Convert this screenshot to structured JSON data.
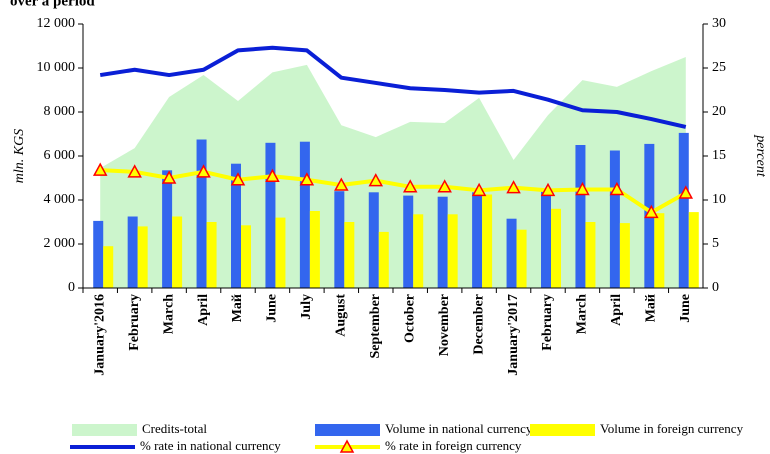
{
  "chart_data": {
    "type": "combo",
    "title": "over a period",
    "ylabel": "mln. KGS",
    "y2label": "percent",
    "categories": [
      "January'2016",
      "February",
      "March",
      "April",
      "Май",
      "June",
      "July",
      "August",
      "September",
      "October",
      "November",
      "December",
      "January'2017",
      "February",
      "March",
      "April",
      "Май",
      "June"
    ],
    "ylim": [
      0,
      12000
    ],
    "yticks": [
      {
        "value": 0,
        "label": "0"
      },
      {
        "value": 2000,
        "label": "2 000"
      },
      {
        "value": 4000,
        "label": "4 000"
      },
      {
        "value": 6000,
        "label": "6 000"
      },
      {
        "value": 8000,
        "label": "8 000"
      },
      {
        "value": 10000,
        "label": "10 000"
      },
      {
        "value": 12000,
        "label": "12 000"
      }
    ],
    "y2lim": [
      0,
      30
    ],
    "y2ticks": [
      0,
      5,
      10,
      15,
      20,
      25,
      30
    ],
    "series": [
      {
        "name": "Credits-total",
        "type": "area",
        "color": "#ccf5cc",
        "values": [
          5450,
          6360,
          8680,
          9680,
          8500,
          9800,
          10140,
          7400,
          6860,
          7550,
          7500,
          8640,
          5820,
          7860,
          9450,
          9140,
          9860,
          10500
        ]
      },
      {
        "name": "Volume in national currency",
        "type": "bar",
        "color": "#3366ee",
        "values": [
          3050,
          3250,
          5350,
          6750,
          5650,
          6600,
          6650,
          4400,
          4350,
          4200,
          4150,
          4350,
          3150,
          4450,
          6500,
          6250,
          6550,
          7050
        ]
      },
      {
        "name": "Volume in foreign currency",
        "type": "bar",
        "color": "#ffff00",
        "values": [
          1900,
          2800,
          3250,
          3000,
          2850,
          3200,
          3500,
          3000,
          2550,
          3350,
          3350,
          4250,
          2650,
          3600,
          3000,
          2950,
          3400,
          3450
        ]
      },
      {
        "name": "% rate in national currency",
        "type": "line",
        "axis": "y2",
        "color": "#0a1fd6",
        "values": [
          24.2,
          24.8,
          24.2,
          24.8,
          27.0,
          27.3,
          27.0,
          23.9,
          23.3,
          22.7,
          22.5,
          22.2,
          22.4,
          21.4,
          20.2,
          20.0,
          19.2,
          18.3
        ]
      },
      {
        "name": "% rate in foreign currency",
        "type": "line",
        "axis": "y2",
        "color": "#ffff00",
        "marker": "triangle",
        "marker_color": "#ff0000",
        "values": [
          13.4,
          13.2,
          12.5,
          13.2,
          12.3,
          12.7,
          12.3,
          11.7,
          12.2,
          11.5,
          11.5,
          11.1,
          11.4,
          11.1,
          11.2,
          11.2,
          8.6,
          10.8
        ]
      }
    ]
  }
}
